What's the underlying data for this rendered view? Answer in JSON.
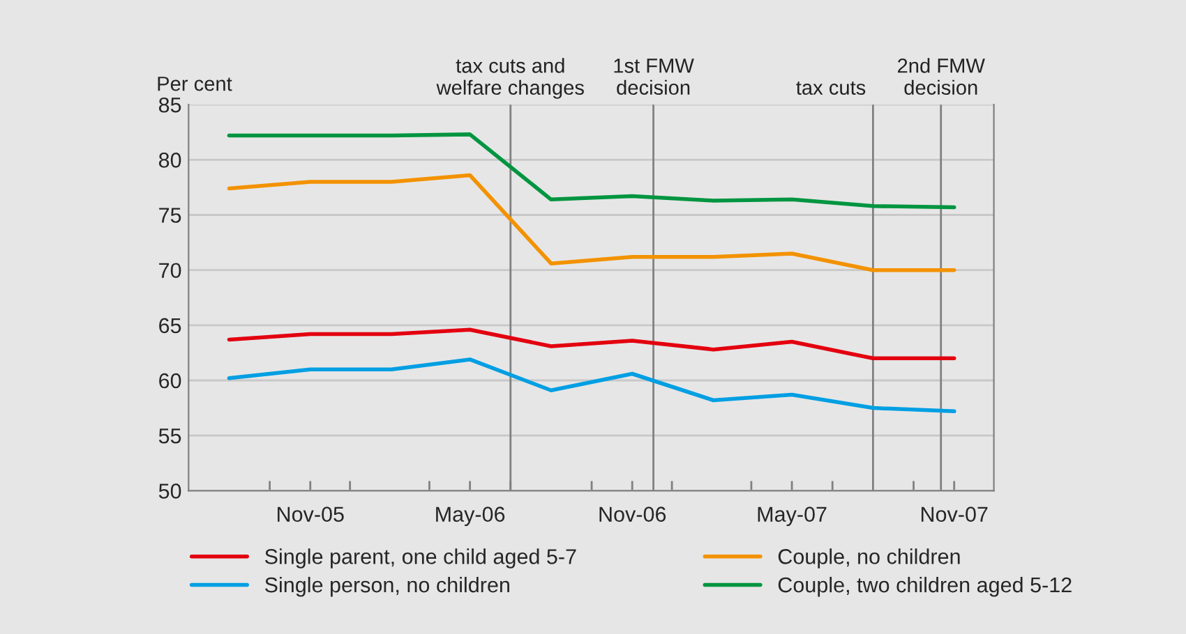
{
  "chart_data": {
    "type": "line",
    "ylabel": "Per cent",
    "x": [
      "2005-08-01",
      "2005-11-01",
      "2006-02-01",
      "2006-05-01",
      "2006-08-01",
      "2006-11-01",
      "2007-02-01",
      "2007-05-01",
      "2007-08-01",
      "2007-11-01"
    ],
    "series": [
      {
        "name": "Single parent, one child aged 5-7",
        "color": "#e3000f",
        "values": [
          63.7,
          64.2,
          64.2,
          64.6,
          63.1,
          63.6,
          62.8,
          63.5,
          62.0,
          62.0
        ]
      },
      {
        "name": "Couple, no children",
        "color": "#f39200",
        "values": [
          77.4,
          78.0,
          78.0,
          78.6,
          70.6,
          71.2,
          71.2,
          71.5,
          70.0,
          70.0
        ]
      },
      {
        "name": "Single person, no children",
        "color": "#009fe3",
        "values": [
          60.2,
          61.0,
          61.0,
          61.9,
          59.1,
          60.6,
          58.2,
          58.7,
          57.5,
          57.2
        ]
      },
      {
        "name": "Couple, two children aged 5-12",
        "color": "#009540",
        "values": [
          82.2,
          82.2,
          82.2,
          82.3,
          76.4,
          76.7,
          76.3,
          76.4,
          75.8,
          75.7
        ]
      }
    ],
    "xlim": [
      "2005-06-16",
      "2007-12-16"
    ],
    "xticks": [
      {
        "value": "2005-09-16",
        "label": null
      },
      {
        "value": "2005-11-01",
        "label": "Nov-05"
      },
      {
        "value": "2005-12-16",
        "label": null
      },
      {
        "value": "2006-03-16",
        "label": null
      },
      {
        "value": "2006-05-01",
        "label": "May-06"
      },
      {
        "value": "2006-06-16",
        "label": null
      },
      {
        "value": "2006-09-16",
        "label": null
      },
      {
        "value": "2006-11-01",
        "label": "Nov-06"
      },
      {
        "value": "2006-12-16",
        "label": null
      },
      {
        "value": "2007-03-16",
        "label": null
      },
      {
        "value": "2007-05-01",
        "label": "May-07"
      },
      {
        "value": "2007-06-16",
        "label": null
      },
      {
        "value": "2007-09-16",
        "label": null
      },
      {
        "value": "2007-11-01",
        "label": "Nov-07"
      }
    ],
    "ylim": [
      50,
      85
    ],
    "yticks": [
      50,
      55,
      60,
      65,
      70,
      75,
      80,
      85
    ],
    "grid": "y",
    "legend": "bottom",
    "marker": "none",
    "line_style": "solid",
    "ref_lines": [
      {
        "axis": "x",
        "value": "2006-06-16",
        "label": "tax cuts and\nwelfare changes",
        "color": "#808080"
      },
      {
        "axis": "x",
        "value": "2006-11-25",
        "label": "1st FMW\ndecision",
        "color": "#808080"
      },
      {
        "axis": "x",
        "value": "2007-08-01",
        "label": "tax cuts",
        "color": "#808080"
      },
      {
        "axis": "x",
        "value": "2007-10-17",
        "label": "2nd FMW\ndecision",
        "color": "#808080"
      }
    ]
  }
}
